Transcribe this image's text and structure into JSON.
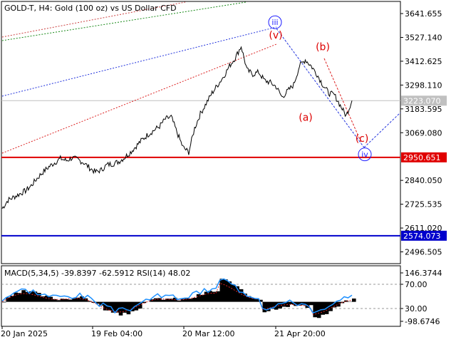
{
  "chart_data": [
    {
      "type": "line",
      "title": "GOLD-T, H4:  Gold (100 oz) vs US Dollar CFD",
      "symbol": "GOLD-T",
      "timeframe": "H4",
      "description": "Gold (100 oz) vs US Dollar CFD",
      "x_tick_labels": [
        "20 Jan 2025",
        "19 Feb 04:00",
        "20 Mar 12:00",
        "21 Apr 20:00"
      ],
      "y_tick_labels": [
        "3641.655",
        "3527.140",
        "3412.625",
        "3298.110",
        "3183.595",
        "3069.080",
        "2950.651",
        "2840.050",
        "2725.535",
        "2611.020",
        "2574.073",
        "2496.505"
      ],
      "ylim": [
        2440,
        3700
      ],
      "current_price": 3223.07,
      "horizontal_levels": [
        {
          "value": 2950.651,
          "label": "2950.651",
          "color": "#e00000"
        },
        {
          "value": 2574.073,
          "label": "2574.073",
          "color": "#0000cc"
        }
      ],
      "price_series": [
        2705,
        2745,
        2760,
        2775,
        2790,
        2815,
        2850,
        2880,
        2905,
        2925,
        2945,
        2935,
        2948,
        2940,
        2925,
        2900,
        2880,
        2890,
        2915,
        2920,
        2930,
        2950,
        2975,
        3005,
        3035,
        3060,
        3080,
        3100,
        3135,
        3145,
        3070,
        3000,
        2975,
        3090,
        3160,
        3210,
        3260,
        3300,
        3340,
        3390,
        3430,
        3485,
        3370,
        3350,
        3360,
        3320,
        3310,
        3290,
        3240,
        3270,
        3300,
        3390,
        3420,
        3390,
        3350,
        3300,
        3260,
        3250,
        3200,
        3150,
        3223
      ],
      "wave_labels": [
        {
          "text": "iii",
          "circled": true,
          "color": "#1c1cff",
          "price": 3600
        },
        {
          "text": "(v)",
          "circled": false,
          "color": "#dd0000",
          "price": 3535
        },
        {
          "text": "(b)",
          "circled": false,
          "color": "#dd0000",
          "price": 3480
        },
        {
          "text": "(a)",
          "circled": false,
          "color": "#dd0000",
          "price": 3140
        },
        {
          "text": "(c)",
          "circled": false,
          "color": "#dd0000",
          "price": 3040
        },
        {
          "text": "iv",
          "circled": true,
          "color": "#1c1cff",
          "price": 2965
        }
      ]
    },
    {
      "type": "line",
      "title": "MACD(5,34,5) -39.8397 -62.5912 RSI(14) 48.02",
      "indicators": {
        "macd": {
          "params": "5,34,5",
          "main": -39.8397,
          "signal": -62.5912
        },
        "rsi": {
          "params": "14",
          "value": 48.02
        }
      },
      "y_tick_labels": [
        "146.3744",
        "70.00",
        "30.00",
        "-98.6746"
      ],
      "rsi_levels": [
        70,
        30
      ],
      "macd_range": [
        -98.6746,
        146.3744
      ]
    }
  ]
}
